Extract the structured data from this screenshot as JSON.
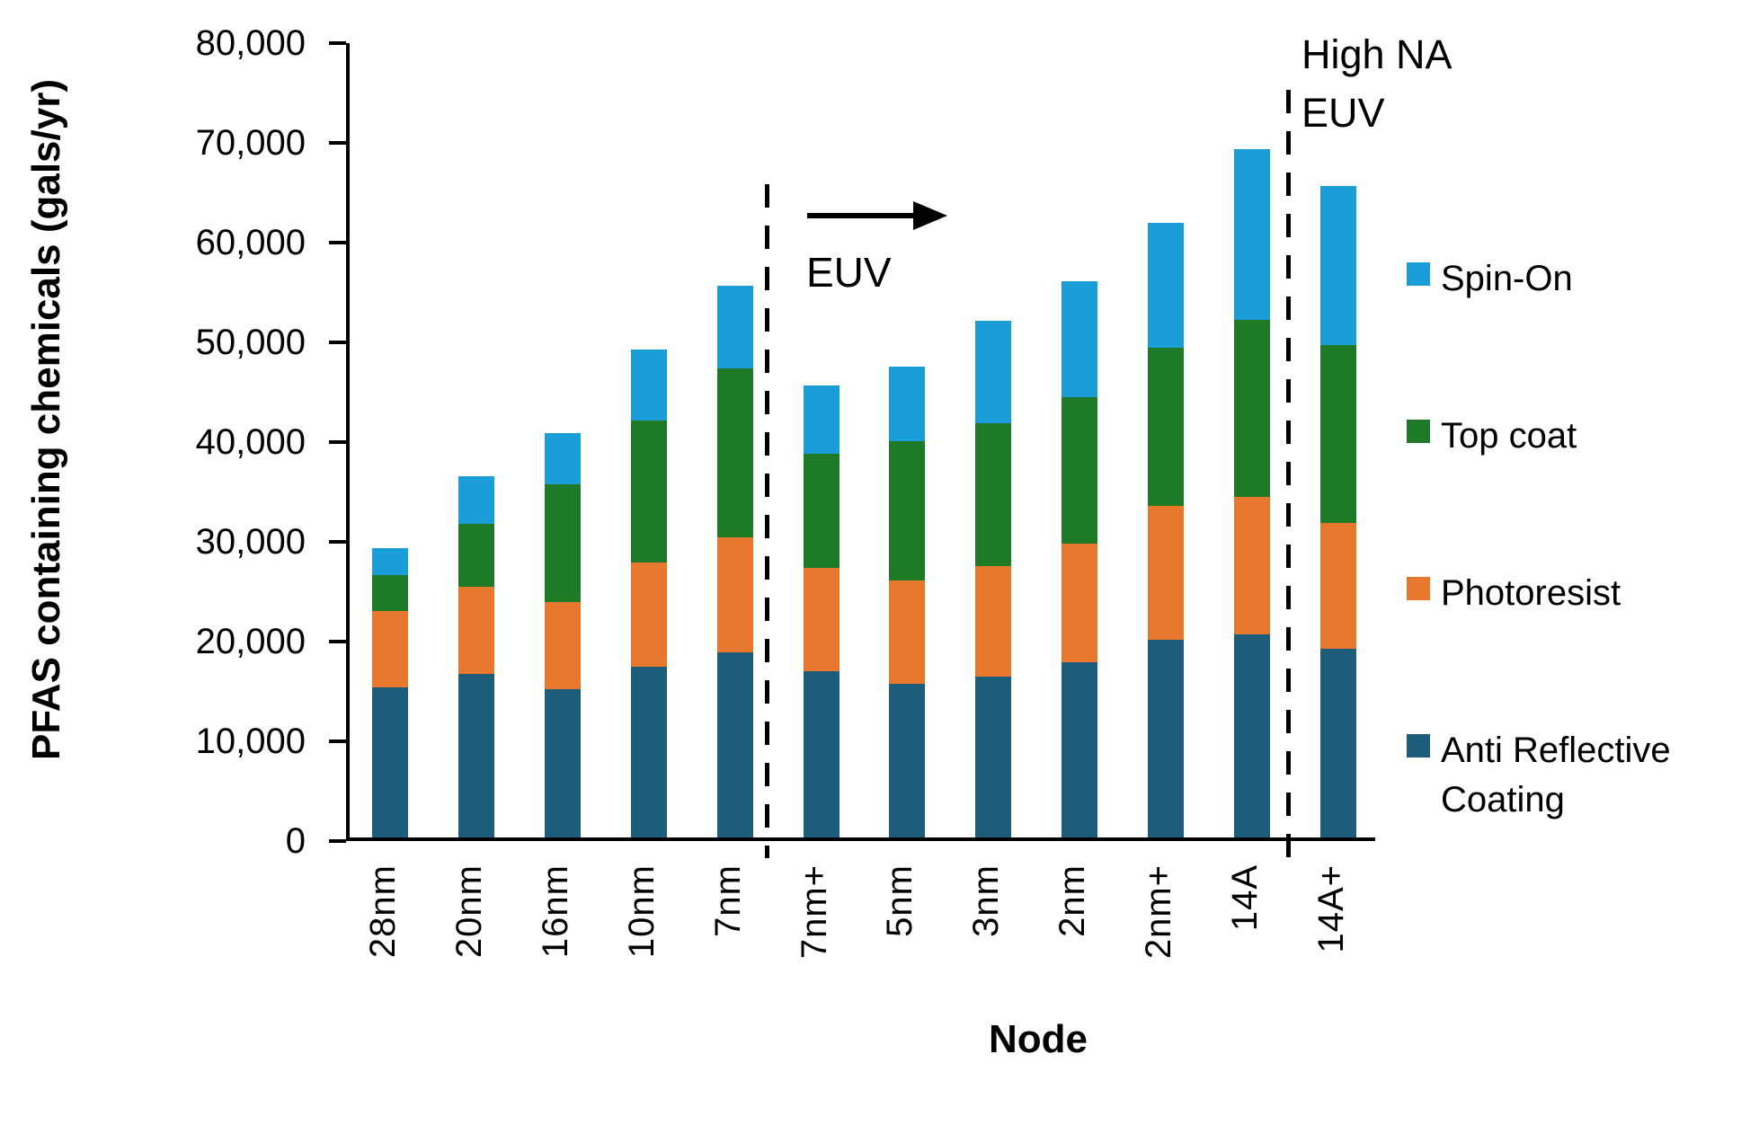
{
  "y_axis": {
    "label": "PFAS containing chemicals (gals/yr)",
    "tick_labels": [
      "0",
      "10,000",
      "20,000",
      "30,000",
      "40,000",
      "50,000",
      "60,000",
      "70,000",
      "80,000"
    ],
    "tick_values": [
      0,
      10000,
      20000,
      30000,
      40000,
      50000,
      60000,
      70000,
      80000
    ]
  },
  "x_axis": {
    "label": "Node"
  },
  "annotations": {
    "euv_label": "EUV",
    "high_na_line1": "High NA",
    "high_na_line2": "EUV"
  },
  "legend": [
    {
      "label": "Spin-On",
      "color": "#1B9DD8"
    },
    {
      "label": "Top coat",
      "color": "#1F7A28"
    },
    {
      "label": "Photoresist",
      "color": "#E8782E"
    },
    {
      "label": "Anti Reflective Coating",
      "color": "#1E5C7C"
    }
  ],
  "colors": {
    "spin_on": "#1B9DD8",
    "top_coat": "#1F7A28",
    "photoresist": "#E8782E",
    "anti_reflective_coating": "#1E5C7C",
    "axis": "#000000"
  },
  "chart_data": {
    "type": "bar",
    "stacked": true,
    "title": "",
    "xlabel": "Node",
    "ylabel": "PFAS containing chemicals (gals/yr)",
    "ylim": [
      0,
      80000
    ],
    "ytick_step": 10000,
    "grid": false,
    "legend_position": "right",
    "categories": [
      "28nm",
      "20nm",
      "16nm",
      "10nm",
      "7nm",
      "7nm+",
      "5nm",
      "3nm",
      "2nm",
      "2nm+",
      "14A",
      "14A+"
    ],
    "series": [
      {
        "name": "Anti Reflective Coating",
        "color": "#1E5C7C",
        "values": [
          15000,
          16400,
          14900,
          17100,
          18600,
          16700,
          15400,
          16100,
          17600,
          19800,
          20400,
          18900
        ]
      },
      {
        "name": "Photoresist",
        "color": "#E8782E",
        "values": [
          7700,
          8700,
          8700,
          10500,
          11500,
          10300,
          10400,
          11100,
          11900,
          13400,
          13700,
          12600
        ]
      },
      {
        "name": "Top coat",
        "color": "#1F7A28",
        "values": [
          3600,
          6300,
          11800,
          14200,
          16900,
          11500,
          13900,
          14300,
          14600,
          15900,
          17800,
          17900
        ]
      },
      {
        "name": "Spin-On",
        "color": "#1B9DD8",
        "values": [
          2700,
          4800,
          5100,
          7100,
          8300,
          6800,
          7500,
          10300,
          11700,
          12500,
          17100,
          15900
        ]
      }
    ],
    "totals": [
      29000,
      36200,
      40500,
      48900,
      55300,
      45300,
      47200,
      51800,
      55800,
      61600,
      69000,
      65300
    ],
    "annotations": {
      "dashed_line_1_between": [
        "7nm",
        "7nm+"
      ],
      "dashed_line_2_between": [
        "14A",
        "14A+"
      ],
      "arrow_label": "EUV",
      "region_label": "High NA EUV"
    }
  }
}
